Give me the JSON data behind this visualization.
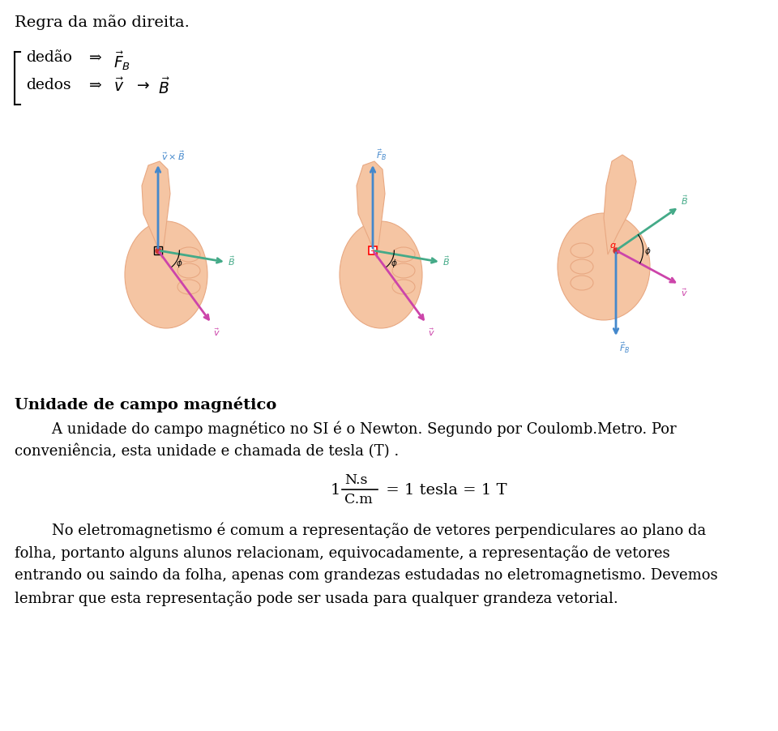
{
  "title": "Regra da mão direita.",
  "brace_line1": "dedão",
  "brace_arrow1": "⇒",
  "brace_vec1": "$\\vec{F}_B$",
  "brace_line2": "dedos",
  "brace_arrow2": "⇒",
  "brace_vec2": "$\\vec{v}$",
  "brace_arrow3": "→",
  "brace_vec3": "$\\vec{B}$",
  "section_title": "Unidade de campo magnético",
  "para1a": "        A unidade do campo magnético no SI é o Newton. Segundo por Coulomb.Metro. Por",
  "para1b": "conveniência, esta unidade e chamada de tesla (T) .",
  "formula_num": "N.s",
  "formula_den": "C.m",
  "formula_rest": " = 1 tesla = 1 T",
  "para2a": "        No eletromagnetismo é comum a representação de vetores perpendiculares ao plano da",
  "para2b": "folha, portanto alguns alunos relacionam, equivocadamente, a representação de vetores",
  "para2c": "entrando ou saindo da folha, apenas com grandezas estudadas no eletromagnetismo. Devemos",
  "para2d": "lembrar que esta representação pode ser usada para qualquer grandeza vetorial.",
  "bg_color": "#ffffff",
  "text_color": "#000000",
  "skin_color": "#F5C5A3",
  "skin_edge": "#E8A882",
  "blue_color": "#4488CC",
  "green_color": "#44AA88",
  "magenta_color": "#CC44AA",
  "red_dot": "#CC3333"
}
